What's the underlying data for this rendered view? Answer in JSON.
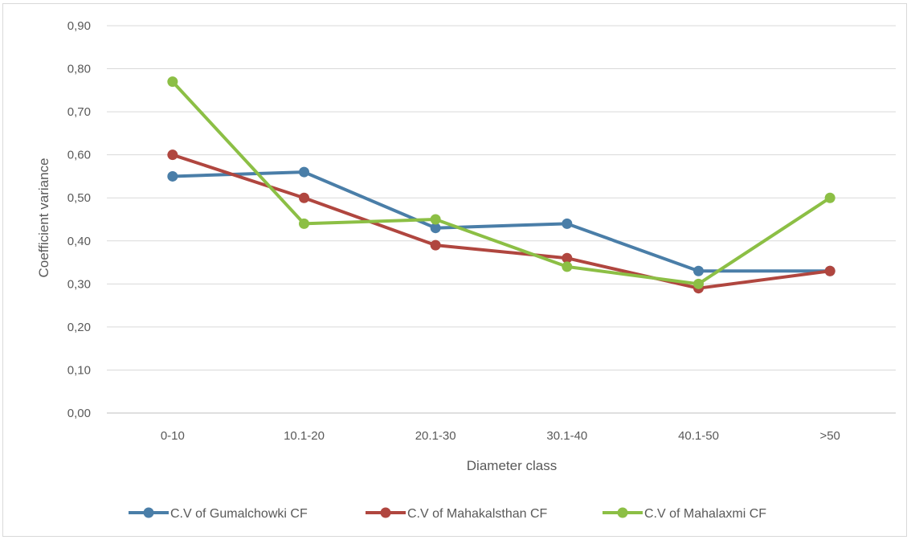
{
  "chart_data": {
    "type": "line",
    "categories": [
      "0-10",
      "10.1-20",
      "20.1-30",
      "30.1-40",
      "40.1-50",
      ">50"
    ],
    "series": [
      {
        "name": "C.V of Gumalchowki CF",
        "color": "#4a7ea8",
        "values": [
          0.55,
          0.56,
          0.43,
          0.44,
          0.33,
          0.33
        ]
      },
      {
        "name": "C.V of Mahakalsthan CF",
        "color": "#b0463f",
        "values": [
          0.6,
          0.5,
          0.39,
          0.36,
          0.29,
          0.33
        ]
      },
      {
        "name": "C.V of Mahalaxmi CF",
        "color": "#8cbf45",
        "values": [
          0.77,
          0.44,
          0.45,
          0.34,
          0.3,
          0.5
        ]
      }
    ],
    "ylim": [
      0,
      0.9
    ],
    "yticks": [
      "0,00",
      "0,10",
      "0,20",
      "0,30",
      "0,40",
      "0,50",
      "0,60",
      "0,70",
      "0,80",
      "0,90"
    ],
    "xlabel": "Diameter  class",
    "ylabel": "Coefficient variance",
    "grid": true,
    "legend": "bottom"
  }
}
